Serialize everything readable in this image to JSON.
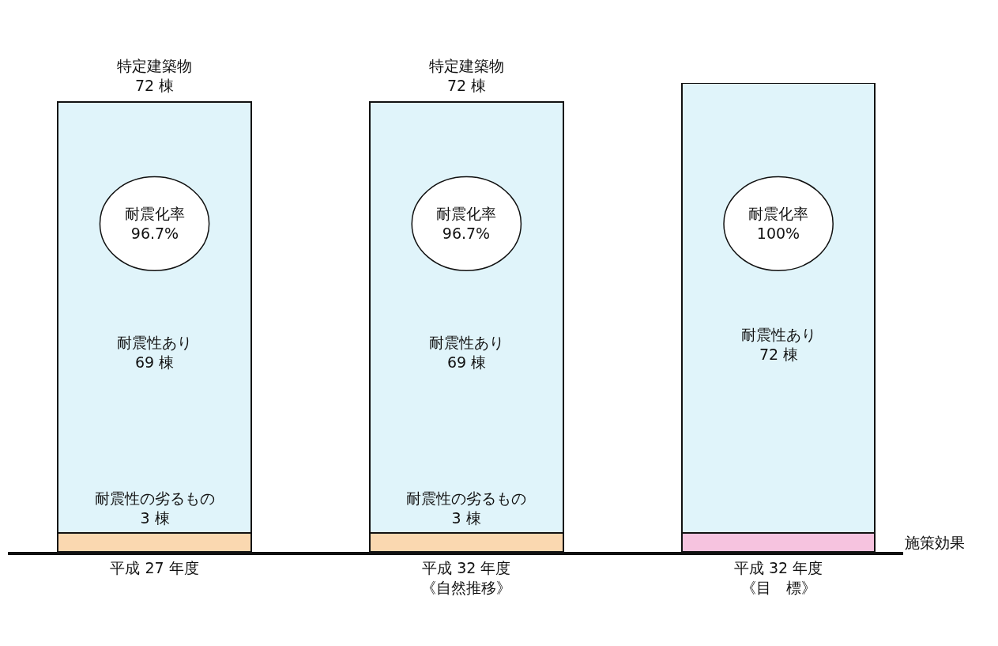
{
  "chart_data": {
    "type": "bar",
    "stacked": true,
    "categories": [
      "平成 27 年度",
      "平成 32 年度《自然推移》",
      "平成 32 年度《目　標》"
    ],
    "series": [
      {
        "colors": [
          "#fad8b0",
          "#fad8b0",
          "#f6c3df"
        ],
        "values": [
          3,
          3,
          3
        ],
        "value_labels": [
          "耐震性の劣るもの\n3 棟",
          "耐震性の劣るもの\n3 棟",
          null
        ]
      },
      {
        "color": "#e0f4fa",
        "values": [
          69,
          69,
          72
        ],
        "value_labels": [
          "耐震性あり\n69 棟",
          "耐震性あり\n69 棟",
          "耐震性あり\n72 棟"
        ]
      }
    ],
    "annotations": [
      {
        "text": "特定建築物\n72 棟",
        "x": "平成 27 年度",
        "y": 72
      },
      {
        "text": "特定建築物\n72 棟",
        "x": "平成 32 年度《自然推移》",
        "y": 72
      },
      "耐震化率\n96.7%",
      "耐震化率\n96.7%",
      "耐震化率\n100%",
      "施策効果"
    ]
  }
}
